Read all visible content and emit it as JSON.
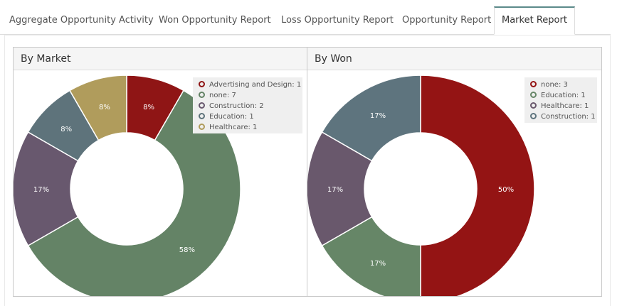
{
  "tabs": [
    {
      "label": "Aggregate Opportunity Activity",
      "active": false
    },
    {
      "label": "Won Opportunity Report",
      "active": false
    },
    {
      "label": "Loss Opportunity Report",
      "active": false
    },
    {
      "label": "Opportunity Report",
      "active": false
    },
    {
      "label": "Market Report",
      "active": true
    }
  ],
  "chart_data": [
    {
      "type": "pie",
      "title": "By Market",
      "donut": true,
      "slices": [
        {
          "name": "Advertising and Design",
          "value": 1,
          "label": "8%",
          "legend": "Advertising and Design: 1",
          "color": "#8f1515"
        },
        {
          "name": "none",
          "value": 7,
          "label": "58%",
          "legend": "none: 7",
          "color": "#648366"
        },
        {
          "name": "Construction",
          "value": 2,
          "label": "17%",
          "legend": "Construction: 2",
          "color": "#68586e"
        },
        {
          "name": "Education",
          "value": 1,
          "label": "8%",
          "legend": "Education: 1",
          "color": "#5e737b"
        },
        {
          "name": "Healthcare",
          "value": 1,
          "label": "8%",
          "legend": "Healthcare: 1",
          "color": "#b09c5c"
        }
      ]
    },
    {
      "type": "pie",
      "title": "By Won",
      "donut": true,
      "slices": [
        {
          "name": "none",
          "value": 3,
          "label": "50%",
          "legend": "none: 3",
          "color": "#941414"
        },
        {
          "name": "Education",
          "value": 1,
          "label": "17%",
          "legend": "Education: 1",
          "color": "#668667"
        },
        {
          "name": "Healthcare",
          "value": 1,
          "label": "17%",
          "legend": "Healthcare: 1",
          "color": "#69586c"
        },
        {
          "name": "Construction",
          "value": 1,
          "label": "17%",
          "legend": "Construction: 1",
          "color": "#5e747e"
        }
      ]
    }
  ]
}
